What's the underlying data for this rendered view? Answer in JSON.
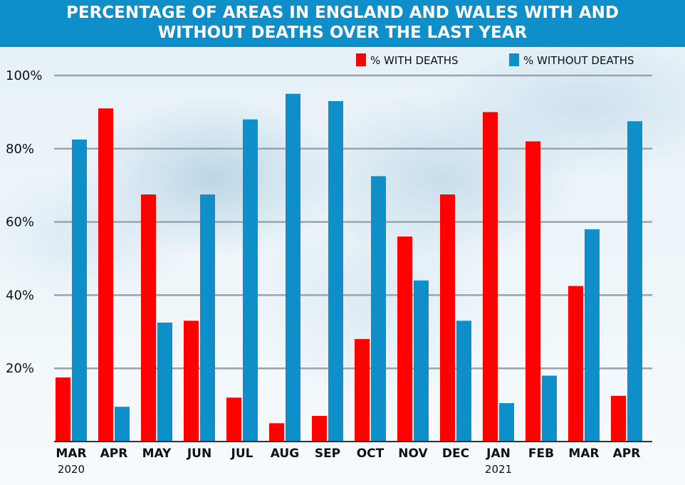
{
  "chart_data": {
    "type": "bar",
    "title": "PERCENTAGE OF AREAS IN ENGLAND AND WALES WITH AND WITHOUT DEATHS OVER THE LAST YEAR",
    "title_lines": [
      "PERCENTAGE OF AREAS IN ENGLAND AND WALES WITH AND",
      "WITHOUT DEATHS OVER THE LAST YEAR"
    ],
    "categories": [
      "MAR",
      "APR",
      "MAY",
      "JUN",
      "JUL",
      "AUG",
      "SEP",
      "OCT",
      "NOV",
      "DEC",
      "JAN",
      "FEB",
      "MAR",
      "APR"
    ],
    "year_labels": [
      {
        "index": 0,
        "text": "2020"
      },
      {
        "index": 10,
        "text": "2021"
      }
    ],
    "series": [
      {
        "name": "% WITH DEATHS",
        "color": "#ff0000",
        "values": [
          17.5,
          91,
          67.5,
          33,
          12,
          5,
          7,
          28,
          56,
          67.5,
          90,
          82,
          42.5,
          12.5
        ]
      },
      {
        "name": "% WITHOUT DEATHS",
        "color": "#0f8fc9",
        "values": [
          82.5,
          9.5,
          32.5,
          67.5,
          88,
          95,
          93,
          72.5,
          44,
          33,
          10.5,
          18,
          58,
          87.5
        ]
      }
    ],
    "yticks": [
      20,
      40,
      60,
      80,
      100
    ],
    "ytick_labels": [
      "20%",
      "40%",
      "60%",
      "80%",
      "100%"
    ],
    "ylim": [
      0,
      100
    ],
    "grid": true,
    "legend_position": "top-right",
    "header_color": "#0f8fc9"
  }
}
